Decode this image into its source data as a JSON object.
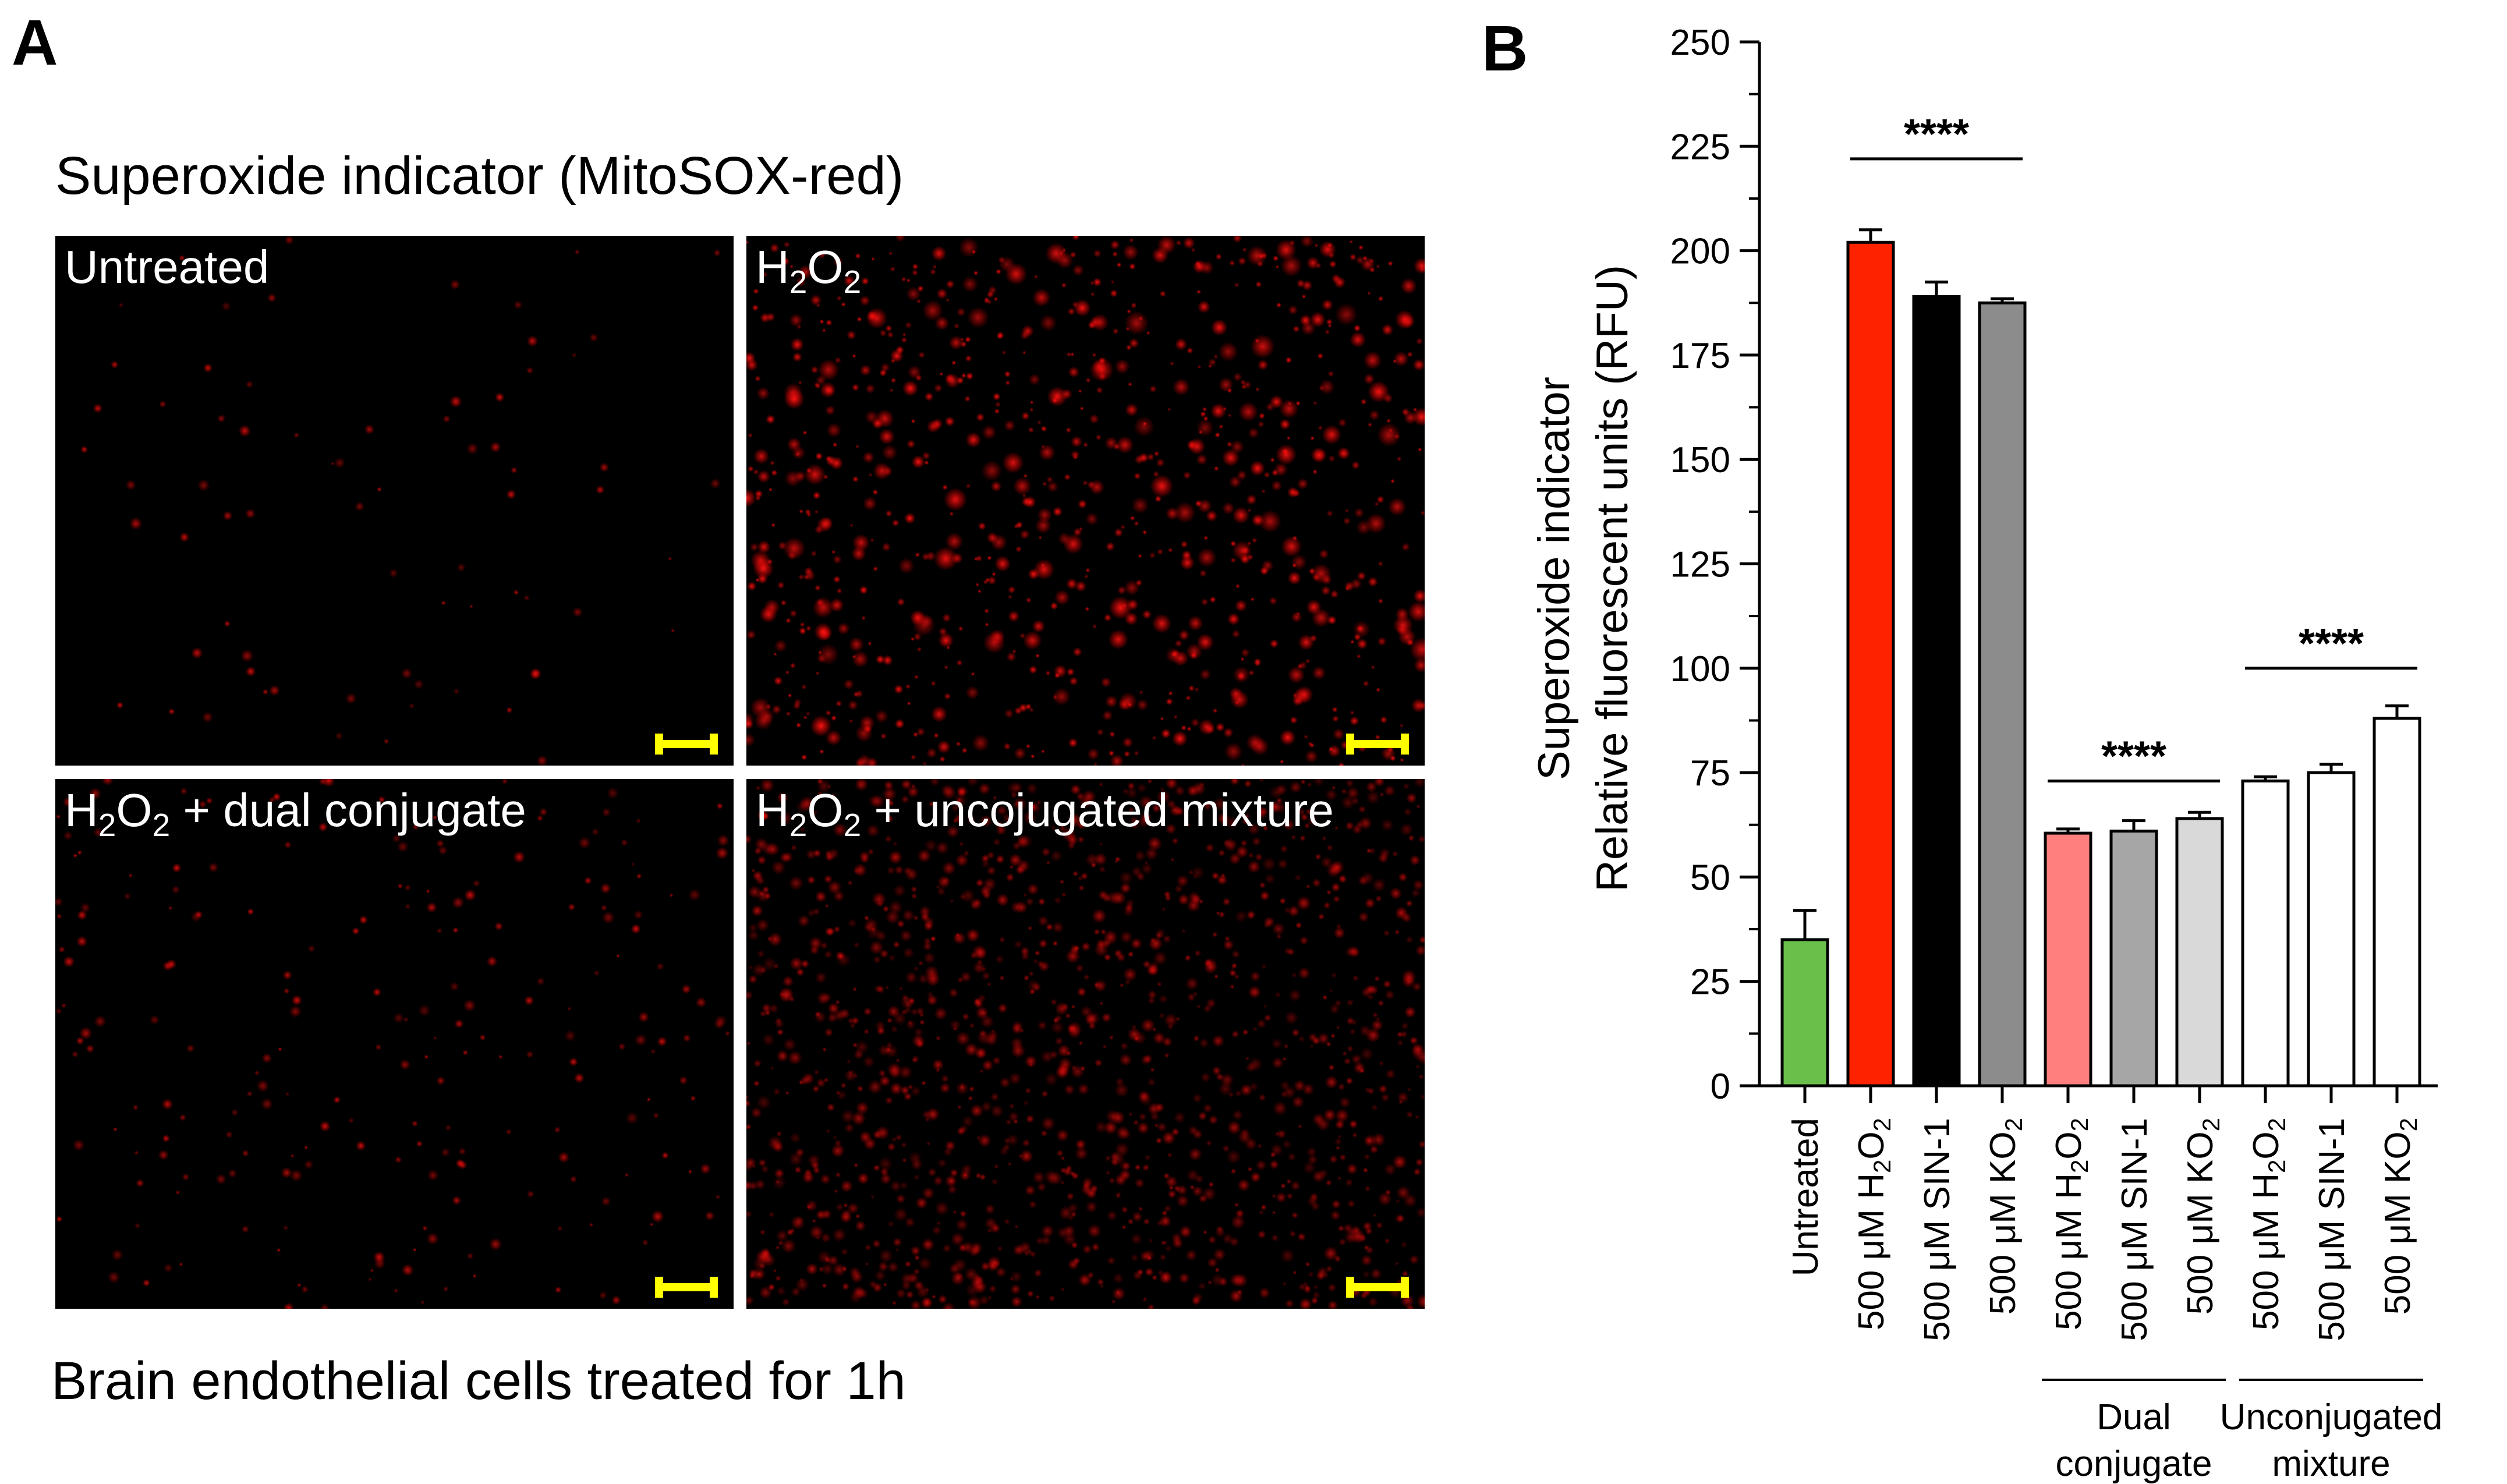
{
  "panel_a": {
    "letter": "A",
    "title": "Superoxide indicator (MitoSOX-red)",
    "caption": "Brain endothelial cells treated for 1h",
    "images": [
      {
        "label": "Untreated",
        "sub": "",
        "label_rest": "",
        "density": 0.08,
        "brightness": "sparse"
      },
      {
        "label": "H",
        "sub": "2",
        "label_mid": "O",
        "sub2": "2",
        "label_rest": "",
        "density": 1.0,
        "brightness": "bright"
      },
      {
        "label": "H",
        "sub": "2",
        "label_mid": "O",
        "sub2": "2",
        "label_rest": " + dual conjugate",
        "density": 0.25,
        "brightness": "sparse"
      },
      {
        "label": "H",
        "sub": "2",
        "label_mid": "O",
        "sub2": "2",
        "label_rest": " + uncojugated mixture",
        "density": 1.6,
        "brightness": "dim"
      }
    ],
    "scale_bar_color": "#ffff00"
  },
  "panel_b": {
    "letter": "B"
  },
  "chart_data": {
    "type": "bar",
    "ylabel_line1": "Superoxide indicator",
    "ylabel_line2": "Relative fluorescent units (RFU)",
    "ylim": [
      0,
      250
    ],
    "yticks": [
      0,
      25,
      50,
      75,
      100,
      125,
      150,
      175,
      200,
      225,
      250
    ],
    "categories": [
      {
        "pre": "Untreated",
        "sub": "",
        "post": ""
      },
      {
        "pre": "500 μM H",
        "sub": "2",
        "mid": "O",
        "sub2": "2"
      },
      {
        "pre": "500 μM SIN-1",
        "sub": ""
      },
      {
        "pre": "500 μM KO",
        "sub": "2"
      },
      {
        "pre": "500 μM H",
        "sub": "2",
        "mid": "O",
        "sub2": "2"
      },
      {
        "pre": "500 μM SIN-1",
        "sub": ""
      },
      {
        "pre": "500 μM KO",
        "sub": "2"
      },
      {
        "pre": "500 μM H",
        "sub": "2",
        "mid": "O",
        "sub2": "2"
      },
      {
        "pre": "500 μM SIN-1",
        "sub": ""
      },
      {
        "pre": "500 μM KO",
        "sub": "2"
      }
    ],
    "values": [
      35,
      202,
      189,
      187.5,
      60.5,
      61,
      64,
      73,
      75,
      88
    ],
    "errors": [
      7,
      3,
      3.5,
      1,
      1,
      2.5,
      1.5,
      1,
      2,
      3
    ],
    "colors": [
      "#6abf4b",
      "#ff2200",
      "#000000",
      "#8c8c8c",
      "#ff7f7f",
      "#a6a6a6",
      "#d9d9d9",
      "#ffffff",
      "#ffffff",
      "#ffffff"
    ],
    "significance": [
      {
        "label": "****",
        "from": 1,
        "to": 3,
        "y": 222
      },
      {
        "label": "****",
        "from": 4,
        "to": 6,
        "y": 73
      },
      {
        "label": "****",
        "from": 7,
        "to": 9,
        "y": 100
      }
    ],
    "groups": [
      {
        "line1": "Dual",
        "line2": "conjugate",
        "from": 4,
        "to": 6
      },
      {
        "line1": "Unconjugated",
        "line2": "mixture",
        "from": 7,
        "to": 9
      }
    ]
  }
}
